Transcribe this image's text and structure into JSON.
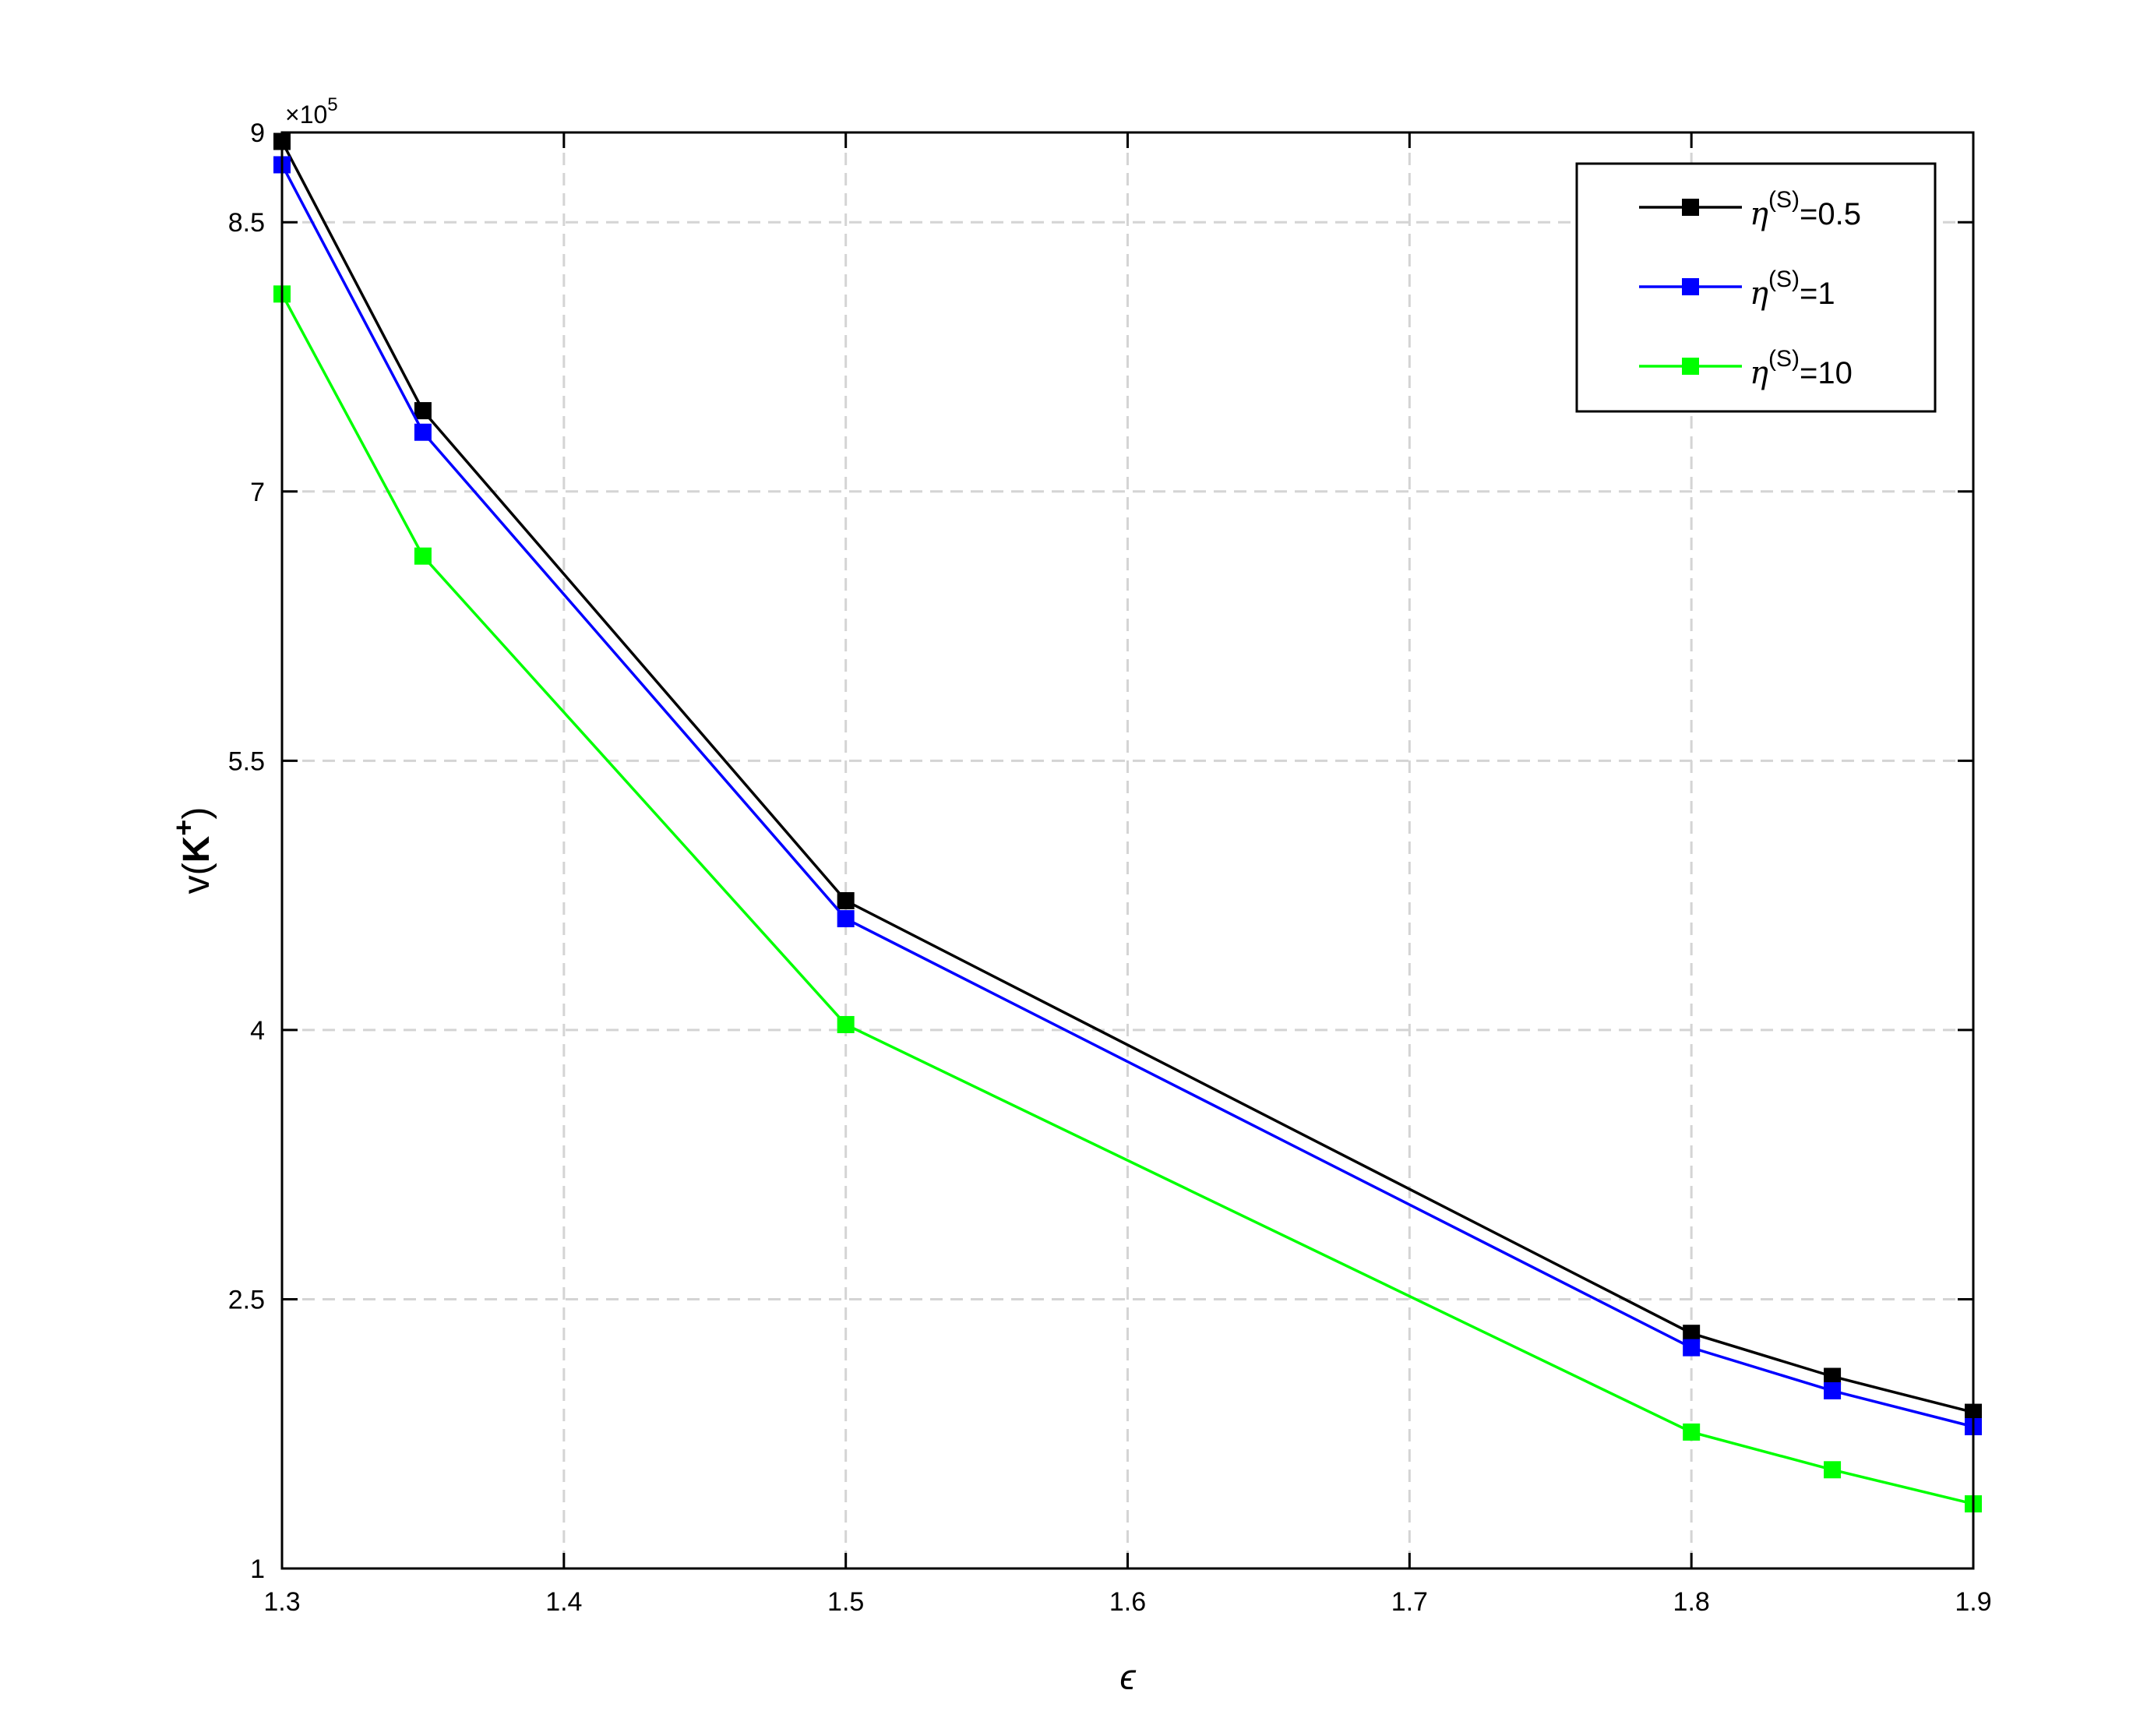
{
  "chart_data": {
    "type": "line",
    "title": "",
    "xlabel": "ϵ",
    "ylabel_prefix": "v(",
    "ylabel_bold": "K",
    "ylabel_sup": "+",
    "ylabel_suffix": ")",
    "y_exponent_label": "×10",
    "y_exponent_power": "5",
    "xlim": [
      1.3,
      1.9
    ],
    "ylim": [
      1,
      9
    ],
    "xticks": [
      1.3,
      1.4,
      1.5,
      1.6,
      1.7,
      1.8,
      1.9
    ],
    "xtick_labels": [
      "1.3",
      "1.4",
      "1.5",
      "1.6",
      "1.7",
      "1.8",
      "1.9"
    ],
    "yticks": [
      1,
      2.5,
      4,
      5.5,
      7,
      8.5,
      9
    ],
    "ytick_labels": [
      "1",
      "2.5",
      "4",
      "5.5",
      "7",
      "8.5",
      "9"
    ],
    "grid": true,
    "legend_position": "top-right",
    "x": [
      1.3,
      1.35,
      1.5,
      1.8,
      1.85,
      1.9
    ],
    "series": [
      {
        "name_main": "η",
        "name_sup": "(S)",
        "name_tail": "=0.5",
        "color": "#000000",
        "values": [
          8.95,
          7.45,
          4.72,
          2.31,
          2.07,
          1.87
        ]
      },
      {
        "name_main": "η",
        "name_sup": "(S)",
        "name_tail": "=1",
        "color": "#0000ff",
        "values": [
          8.82,
          7.33,
          4.62,
          2.23,
          1.99,
          1.79
        ]
      },
      {
        "name_main": "η",
        "name_sup": "(S)",
        "name_tail": "=10",
        "color": "#00ff00",
        "values": [
          8.1,
          6.64,
          4.03,
          1.76,
          1.55,
          1.36
        ]
      }
    ]
  }
}
